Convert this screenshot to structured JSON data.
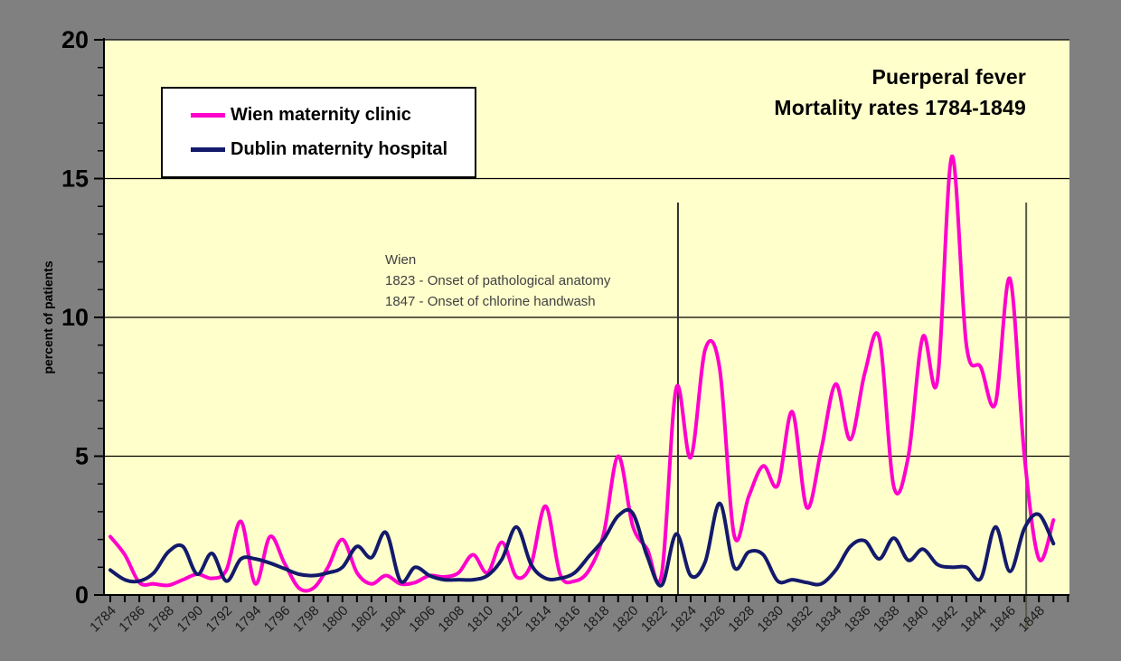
{
  "title": {
    "line1": "Puerperal fever",
    "line2": "Mortality rates 1784-1849"
  },
  "y_axis": {
    "title": "percent of patients",
    "tick_labels": [
      "0",
      "5",
      "10",
      "15",
      "20"
    ],
    "minor_tick_step": 1,
    "min": 0,
    "max": 20
  },
  "x_axis": {
    "tick_labels": [
      "1784",
      "1786",
      "1788",
      "1790",
      "1792",
      "1794",
      "1796",
      "1798",
      "1800",
      "1802",
      "1804",
      "1806",
      "1808",
      "1810",
      "1812",
      "1814",
      "1816",
      "1818",
      "1820",
      "1822",
      "1824",
      "1826",
      "1828",
      "1830",
      "1832",
      "1834",
      "1836",
      "1838",
      "1840",
      "1842",
      "1844",
      "1846",
      "1848"
    ],
    "minor_tick_step": 1
  },
  "legend": {
    "items": [
      {
        "label": "Wien maternity clinic",
        "color": "#FF00CC"
      },
      {
        "label": "Dublin maternity hospital",
        "color": "#131A6B"
      }
    ]
  },
  "annotation": {
    "lines": [
      "Wien",
      "1823 - Onset of pathological anatomy",
      "1847 - Onset of chlorine handwash"
    ]
  },
  "colors": {
    "page_background": "#808080",
    "plot_background": "#FFFFCC",
    "gridline": "#000000",
    "axis": "#000000",
    "wien_line": "#FF00CC",
    "dublin_line": "#131A6B",
    "marker_line_1823": "#303030",
    "marker_line_1847": "#5A5A48",
    "legend_background": "#FFFFFF",
    "annotation_text": "#404040"
  },
  "chart_data": {
    "type": "line",
    "title": "Puerperal fever Mortality rates 1784-1849",
    "xlabel": "",
    "ylabel": "percent of patients",
    "ylim": [
      0,
      20
    ],
    "x_range": [
      1784,
      1850
    ],
    "grid": "horizontal lines every 5",
    "legend_position": "top-left framed box",
    "line_style": "smoothed spline",
    "vertical_marker_years": [
      1823,
      1847
    ],
    "x": [
      1784,
      1785,
      1786,
      1787,
      1788,
      1789,
      1790,
      1791,
      1792,
      1793,
      1794,
      1795,
      1796,
      1797,
      1798,
      1799,
      1800,
      1801,
      1802,
      1803,
      1804,
      1805,
      1806,
      1807,
      1808,
      1809,
      1810,
      1811,
      1812,
      1813,
      1814,
      1815,
      1816,
      1817,
      1818,
      1819,
      1820,
      1821,
      1822,
      1823,
      1824,
      1825,
      1826,
      1827,
      1828,
      1829,
      1830,
      1831,
      1832,
      1833,
      1834,
      1835,
      1836,
      1837,
      1838,
      1839,
      1840,
      1841,
      1842,
      1843,
      1844,
      1845,
      1846,
      1847,
      1848,
      1849
    ],
    "series": [
      {
        "name": "Wien maternity clinic",
        "color": "#FF00CC",
        "values": [
          2.1,
          1.45,
          0.45,
          0.4,
          0.35,
          0.55,
          0.75,
          0.6,
          0.9,
          2.65,
          0.4,
          2.1,
          1.15,
          0.25,
          0.25,
          1.0,
          2.0,
          0.8,
          0.4,
          0.7,
          0.4,
          0.45,
          0.7,
          0.65,
          0.8,
          1.45,
          0.8,
          1.9,
          0.65,
          1.1,
          3.2,
          0.75,
          0.5,
          0.9,
          2.2,
          5.0,
          2.5,
          1.65,
          0.75,
          7.45,
          4.95,
          8.85,
          8.15,
          2.15,
          3.55,
          4.65,
          3.95,
          6.6,
          3.15,
          5.25,
          7.6,
          5.6,
          8.0,
          9.25,
          3.9,
          5.0,
          9.3,
          7.7,
          15.8,
          9.0,
          8.2,
          6.9,
          11.4,
          5.0,
          1.3,
          2.7
        ]
      },
      {
        "name": "Dublin maternity hospital",
        "color": "#131A6B",
        "values": [
          0.9,
          0.55,
          0.5,
          0.8,
          1.55,
          1.75,
          0.75,
          1.5,
          0.5,
          1.3,
          1.3,
          1.15,
          0.95,
          0.75,
          0.7,
          0.8,
          1.0,
          1.75,
          1.35,
          2.25,
          0.5,
          1.0,
          0.7,
          0.55,
          0.55,
          0.55,
          0.7,
          1.3,
          2.45,
          1.1,
          0.6,
          0.6,
          0.8,
          1.4,
          2.0,
          2.85,
          2.95,
          1.4,
          0.35,
          2.2,
          0.7,
          1.2,
          3.3,
          1.0,
          1.55,
          1.45,
          0.5,
          0.55,
          0.45,
          0.4,
          0.9,
          1.75,
          1.95,
          1.3,
          2.05,
          1.25,
          1.65,
          1.1,
          1.0,
          1.0,
          0.6,
          2.45,
          0.85,
          2.4,
          2.9,
          1.85
        ]
      }
    ]
  }
}
